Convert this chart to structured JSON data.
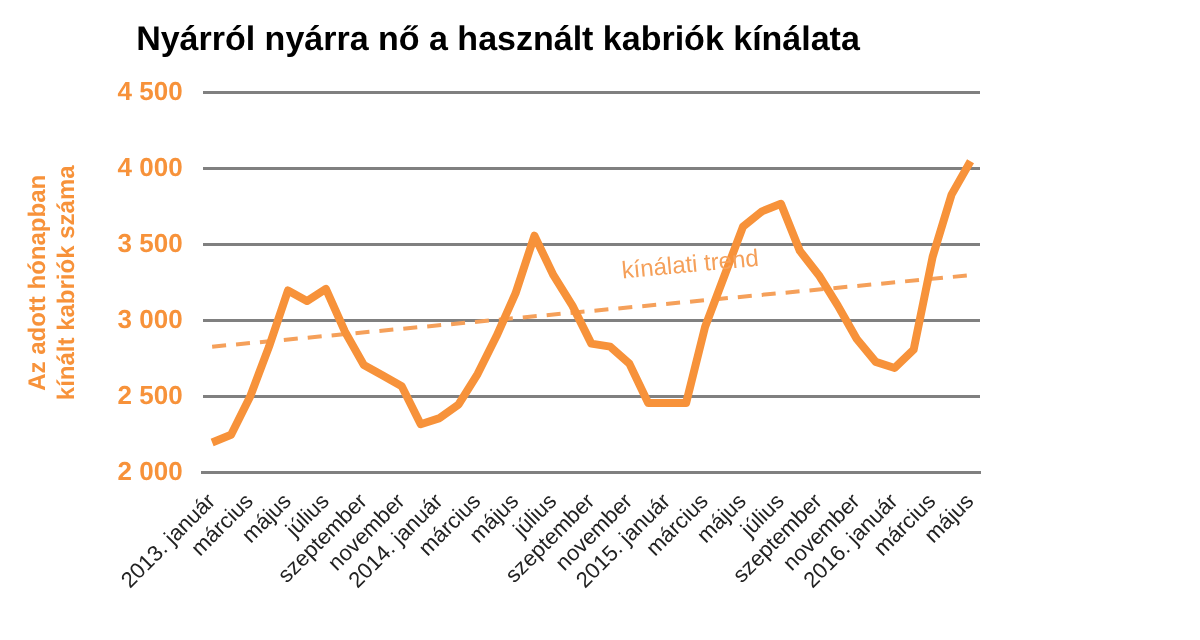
{
  "chart_data": {
    "type": "line",
    "title": "Nyárról nyárra nő a használt kabriók kínálata",
    "ylabel": "Az adott hónapban kínált kabriók száma",
    "categories": [
      "2013. január",
      null,
      "március",
      null,
      "május",
      null,
      "július",
      null,
      "szeptember",
      null,
      "november",
      null,
      "2014. január",
      null,
      "március",
      null,
      "május",
      null,
      "július",
      null,
      "szeptember",
      null,
      "november",
      null,
      "2015. január",
      null,
      "március",
      null,
      "május",
      null,
      "július",
      null,
      "szeptember",
      null,
      "november",
      null,
      "2016. január",
      null,
      "március",
      null,
      "május"
    ],
    "series": [
      {
        "color": "#f7923a",
        "line_style": "solid",
        "values": [
          2200,
          2250,
          2500,
          2830,
          3200,
          3130,
          3210,
          2930,
          2710,
          2640,
          2570,
          2320,
          2360,
          2450,
          2650,
          2900,
          3180,
          3560,
          3300,
          3100,
          2850,
          2830,
          2720,
          2460,
          2460,
          2460,
          2960,
          3290,
          3620,
          3720,
          3770,
          3460,
          3300,
          3100,
          2880,
          2730,
          2690,
          2810,
          3420,
          3830,
          4050
        ]
      },
      {
        "name": "kínálati trend",
        "color": "#f5a05a",
        "line_style": "dashed",
        "values": [
          2830,
          null,
          null,
          null,
          null,
          null,
          null,
          null,
          null,
          null,
          null,
          null,
          null,
          null,
          null,
          null,
          null,
          null,
          null,
          null,
          null,
          null,
          null,
          null,
          null,
          null,
          null,
          null,
          null,
          null,
          null,
          null,
          null,
          null,
          null,
          null,
          null,
          null,
          null,
          null,
          3300
        ]
      }
    ],
    "ylim": [
      2000,
      4500
    ],
    "yticks": [
      {
        "value": 2000,
        "label": "2 000"
      },
      {
        "value": 2500,
        "label": "2 500"
      },
      {
        "value": 3000,
        "label": "3 000"
      },
      {
        "value": 3500,
        "label": "3 500"
      },
      {
        "value": 4000,
        "label": "4 000"
      },
      {
        "value": 4500,
        "label": "4 500"
      }
    ],
    "grid": "y",
    "legend": false,
    "marker": "none"
  }
}
